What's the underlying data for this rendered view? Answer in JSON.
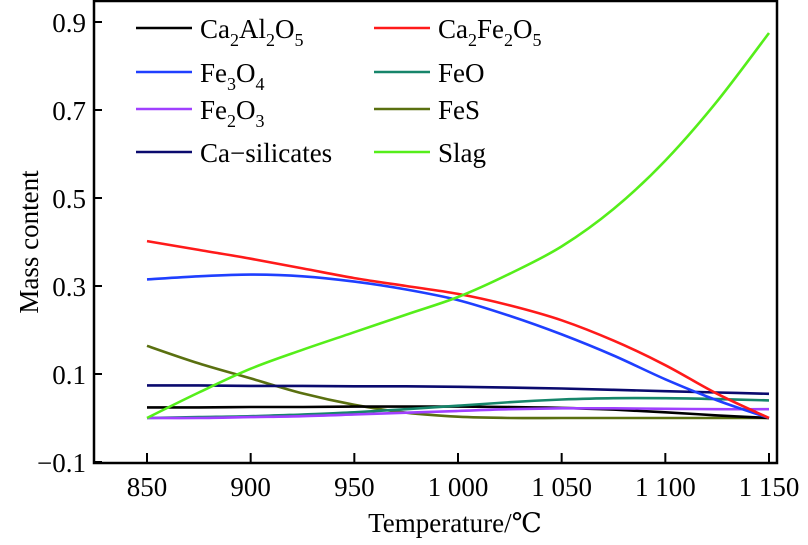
{
  "chart_data": {
    "type": "line",
    "title": "",
    "xlabel": "Temperature/℃",
    "ylabel": "Mass content",
    "xlim": [
      826,
      1153
    ],
    "ylim": [
      -0.1,
      0.95
    ],
    "xticks": [
      850,
      900,
      950,
      1000,
      1050,
      1100,
      1150
    ],
    "xtick_labels": [
      "850",
      "900",
      "950",
      "1 000",
      "1 050",
      "1 100",
      "1 150"
    ],
    "yticks": [
      -0.1,
      0.1,
      0.3,
      0.5,
      0.7,
      0.9
    ],
    "ytick_labels": [
      "−0.1",
      "0.1",
      "0.3",
      "0.5",
      "0.7",
      "0.9"
    ],
    "grid": false,
    "legend_placement": "top-left",
    "x": [
      850,
      875,
      900,
      925,
      950,
      975,
      1000,
      1025,
      1050,
      1075,
      1100,
      1125,
      1150
    ],
    "series": [
      {
        "name": "Ca2Al2O5",
        "label_parts": [
          [
            "Ca",
            ""
          ],
          [
            "2",
            "sub"
          ],
          [
            "Al",
            ""
          ],
          [
            "2",
            "sub"
          ],
          [
            "O",
            ""
          ],
          [
            "5",
            "sub"
          ]
        ],
        "color": "#000000",
        "values": [
          0.024,
          0.024,
          0.025,
          0.025,
          0.026,
          0.026,
          0.026,
          0.025,
          0.023,
          0.019,
          0.013,
          0.006,
          0.0
        ]
      },
      {
        "name": "Fe3O4",
        "label_parts": [
          [
            "Fe",
            ""
          ],
          [
            "3",
            "sub"
          ],
          [
            "O",
            ""
          ],
          [
            "4",
            "sub"
          ]
        ],
        "color": "#1f3fff",
        "values": [
          0.315,
          0.322,
          0.326,
          0.322,
          0.31,
          0.292,
          0.268,
          0.232,
          0.19,
          0.142,
          0.088,
          0.04,
          0.0
        ]
      },
      {
        "name": "Fe2O3",
        "label_parts": [
          [
            "Fe",
            ""
          ],
          [
            "2",
            "sub"
          ],
          [
            "O",
            ""
          ],
          [
            "3",
            "sub"
          ]
        ],
        "color": "#a040ff",
        "values": [
          0.0,
          0.0,
          0.002,
          0.004,
          0.008,
          0.012,
          0.016,
          0.02,
          0.022,
          0.022,
          0.021,
          0.02,
          0.02
        ]
      },
      {
        "name": "Ca-silicates",
        "label_parts": [
          [
            "Ca−silicates",
            ""
          ]
        ],
        "color": "#0a0a6e",
        "values": [
          0.074,
          0.074,
          0.073,
          0.073,
          0.072,
          0.072,
          0.071,
          0.069,
          0.067,
          0.064,
          0.061,
          0.058,
          0.055
        ]
      },
      {
        "name": "Ca2Fe2O5",
        "label_parts": [
          [
            "Ca",
            ""
          ],
          [
            "2",
            "sub"
          ],
          [
            "Fe",
            ""
          ],
          [
            "2",
            "sub"
          ],
          [
            "O",
            ""
          ],
          [
            "5",
            "sub"
          ]
        ],
        "color": "#ff1a1a",
        "values": [
          0.402,
          0.382,
          0.362,
          0.34,
          0.318,
          0.3,
          0.282,
          0.256,
          0.222,
          0.176,
          0.12,
          0.055,
          0.0
        ]
      },
      {
        "name": "FeO",
        "label_parts": [
          [
            "FeO",
            ""
          ]
        ],
        "color": "#16856a",
        "values": [
          0.0,
          0.002,
          0.004,
          0.008,
          0.013,
          0.02,
          0.028,
          0.036,
          0.042,
          0.045,
          0.045,
          0.043,
          0.04
        ]
      },
      {
        "name": "FeS",
        "label_parts": [
          [
            "FeS",
            ""
          ]
        ],
        "color": "#5a7010",
        "values": [
          0.164,
          0.124,
          0.09,
          0.056,
          0.03,
          0.012,
          0.003,
          0.0,
          0.0,
          0.0,
          0.0,
          0.0,
          0.0
        ]
      },
      {
        "name": "Slag",
        "label_parts": [
          [
            "Slag",
            ""
          ]
        ],
        "color": "#55ee1a",
        "values": [
          0.0,
          0.058,
          0.112,
          0.155,
          0.195,
          0.235,
          0.275,
          0.328,
          0.39,
          0.475,
          0.585,
          0.72,
          0.875
        ]
      }
    ]
  }
}
